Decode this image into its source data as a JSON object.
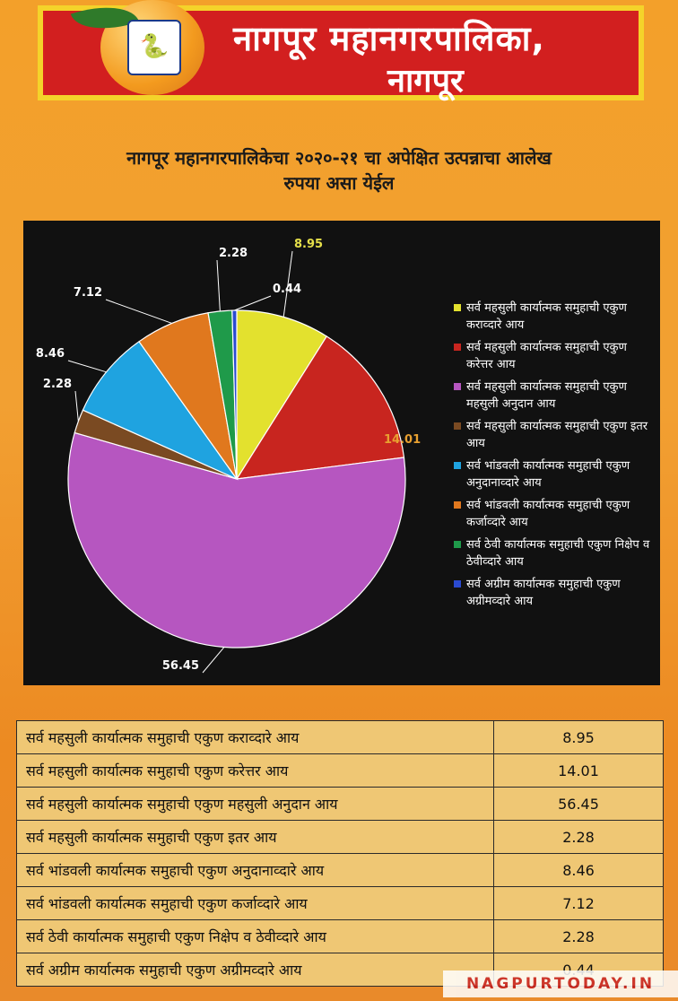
{
  "header": {
    "title_line1": "नागपूर महानगरपालिका,",
    "title_line2": "नागपूर"
  },
  "chart_data": {
    "type": "pie",
    "title": "नागपूर महानगरपालिकेचा २०२०-२१ चा अपेक्षित उत्पन्नाचा आलेख",
    "subtitle": "रुपया असा येईल",
    "legend_position": "right",
    "categories": [
      "सर्व महसुली कार्यात्मक समुहाची एकुण कराव्दारे आय",
      "सर्व महसुली कार्यात्मक समुहाची एकुण करेत्तर आय",
      "सर्व महसुली कार्यात्मक समुहाची एकुण महसुली अनुदान आय",
      "सर्व महसुली कार्यात्मक समुहाची एकुण इतर आय",
      "सर्व भांडवली कार्यात्मक समुहाची एकुण अनुदानाव्दारे आय",
      "सर्व भांडवली कार्यात्मक समुहाची एकुण कर्जाव्दारे आय",
      "सर्व ठेवी कार्यात्मक समुहाची एकुण निक्षेप व ठेवीव्दारे आय",
      "सर्व अग्रीम कार्यात्मक समुहाची एकुण अग्रीमव्दारे आय"
    ],
    "values": [
      8.95,
      14.01,
      56.45,
      2.28,
      8.46,
      7.12,
      2.28,
      0.44
    ],
    "labels": [
      "8.95",
      "14.01",
      "56.45",
      "2.28",
      "8.46",
      "7.12",
      "2.28",
      "0.44"
    ],
    "colors": [
      "#e3e12e",
      "#c8251f",
      "#b656c0",
      "#7a4a22",
      "#1fa3e0",
      "#e0781e",
      "#1f9a4a",
      "#2a4ad0"
    ],
    "label_colors": [
      "#e6e04a",
      "#e8a030",
      "#ffffff",
      "#ffffff",
      "#ffffff",
      "#ffffff",
      "#ffffff",
      "#ffffff"
    ]
  },
  "table": {
    "rows": [
      {
        "label": "सर्व महसुली कार्यात्मक समुहाची  एकुण कराव्दारे  आय",
        "value": "8.95"
      },
      {
        "label": "सर्व महसुली कार्यात्मक समुहाची  एकुण करेत्तर आय",
        "value": "14.01"
      },
      {
        "label": "सर्व महसुली कार्यात्मक समुहाची  एकुण महसुली अनुदान  आय",
        "value": "56.45"
      },
      {
        "label": "सर्व महसुली कार्यात्मक समुहाची  एकुण इतर  आय",
        "value": "2.28"
      },
      {
        "label": "सर्व भांडवली कार्यात्मक समुहाची एकुण अनुदानाव्दारे आय",
        "value": "8.46"
      },
      {
        "label": "सर्व भांडवली कार्यात्मक समुहाची एकुण कर्जाव्दारे आय",
        "value": "7.12"
      },
      {
        "label": "सर्व ठेवी कार्यात्मक समुहाची एकुण निक्षेप व ठेवीव्दारे आय",
        "value": "2.28"
      },
      {
        "label": "सर्व अग्रीम  कार्यात्मक समुहाची एकुण अग्रीमव्दारे आय",
        "value": "0.44"
      }
    ]
  },
  "watermark": "NAGPURTODAY.IN"
}
